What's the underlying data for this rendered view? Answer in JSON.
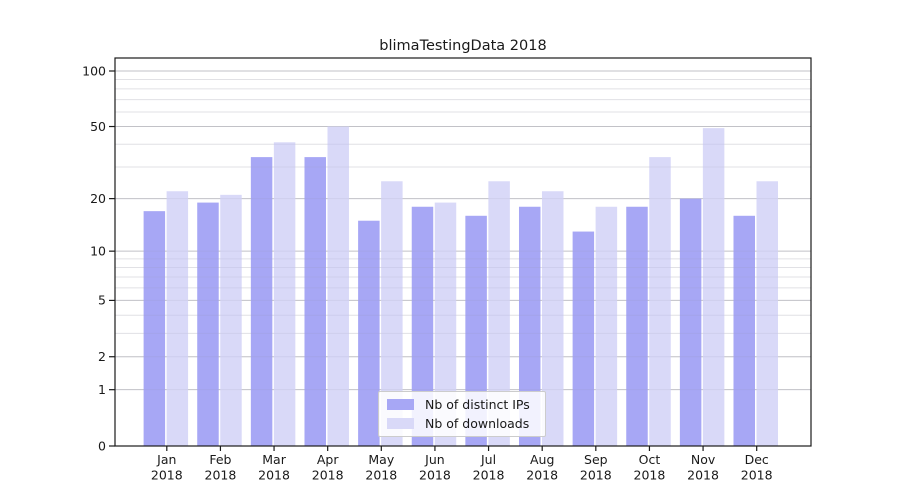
{
  "title": "blimaTestingData 2018",
  "chart_data": {
    "type": "bar",
    "title": "blimaTestingData 2018",
    "categories": [
      "Jan 2018",
      "Feb 2018",
      "Mar 2018",
      "Apr 2018",
      "May 2018",
      "Jun 2018",
      "Jul 2018",
      "Aug 2018",
      "Sep 2018",
      "Oct 2018",
      "Nov 2018",
      "Dec 2018"
    ],
    "series": [
      {
        "key": "distinct-ips",
        "name": "Nb of distinct IPs",
        "color": "#a7a7f5",
        "values": [
          17,
          19,
          34,
          34,
          15,
          18,
          16,
          18,
          13,
          18,
          20,
          16
        ]
      },
      {
        "key": "downloads",
        "name": "Nb of downloads",
        "color": "#d9d9f8",
        "values": [
          22,
          21,
          41,
          50,
          25,
          19,
          25,
          22,
          18,
          34,
          49,
          25
        ]
      }
    ],
    "xlabel": "",
    "ylabel": "",
    "y_axis": {
      "scale": "log1p",
      "major_ticks": [
        0,
        1,
        2,
        5,
        10,
        20,
        50,
        100
      ],
      "minor_ticks": [
        3,
        4,
        6,
        7,
        8,
        9,
        30,
        40,
        60,
        70,
        80,
        90
      ],
      "ylim": [
        0,
        118
      ]
    },
    "grid": "on",
    "legend_position": "lower center"
  },
  "colors": {
    "background": "#ffffff",
    "bar_dark": "#a7a7f5",
    "bar_light": "#d9d9f8",
    "grid_major": "#cbcbcb",
    "grid_minor": "#efefef",
    "axis": "#1a1a1a",
    "text": "#1a1a1a",
    "legend_border": "#cccccc"
  }
}
